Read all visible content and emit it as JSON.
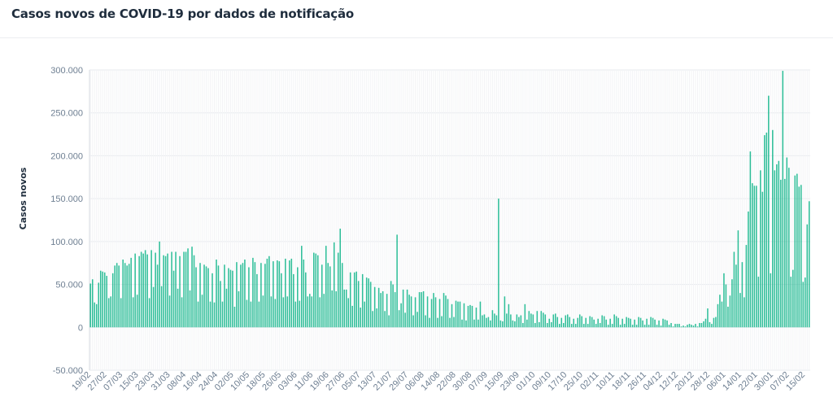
{
  "title": "Casos novos de COVID-19 por dados de notificação",
  "chart_data": {
    "type": "bar",
    "title": "Casos novos de COVID-19 por dados de notificação",
    "xlabel": "",
    "ylabel": "Casos novos",
    "ylim": [
      -50000,
      300000
    ],
    "yticks": [
      -50000,
      0,
      50000,
      100000,
      150000,
      200000,
      250000,
      300000
    ],
    "ytick_labels": [
      "-50.000",
      "0",
      "50.000",
      "100.000",
      "150.000",
      "200.000",
      "250.000",
      "300.000"
    ],
    "xtick_labels": [
      "19/02",
      "27/02",
      "07/03",
      "15/03",
      "23/03",
      "31/03",
      "08/04",
      "16/04",
      "24/04",
      "02/05",
      "10/05",
      "18/05",
      "26/05",
      "03/06",
      "11/06",
      "19/06",
      "27/06",
      "05/07",
      "13/07",
      "21/07",
      "29/07",
      "06/08",
      "14/08",
      "22/08",
      "30/08",
      "07/09",
      "15/09",
      "23/09",
      "01/10",
      "09/10",
      "17/10",
      "25/10",
      "02/11",
      "10/11",
      "18/11",
      "26/11",
      "04/12",
      "12/12",
      "20/12",
      "28/12",
      "06/01",
      "14/01",
      "22/01",
      "30/01",
      "07/02",
      "15/02"
    ],
    "bar_color": "#2ebd98",
    "grid": true,
    "categories_start": "19/02",
    "categories_end": "16/02",
    "values": [
      51000,
      56000,
      29000,
      27000,
      52000,
      66000,
      65000,
      64000,
      60000,
      34000,
      36000,
      63000,
      72000,
      75000,
      72000,
      34000,
      79000,
      75000,
      72000,
      74000,
      81000,
      35000,
      86000,
      38000,
      83000,
      88000,
      86000,
      90000,
      85000,
      34000,
      90000,
      47000,
      87000,
      73000,
      100000,
      48000,
      84000,
      83000,
      86000,
      37000,
      88000,
      66000,
      88000,
      45000,
      83000,
      35000,
      88000,
      88000,
      92000,
      43000,
      94000,
      84000,
      70000,
      30000,
      75000,
      38000,
      73000,
      71000,
      69000,
      30000,
      63000,
      29000,
      79000,
      72000,
      54000,
      30000,
      73000,
      45000,
      69000,
      67000,
      66000,
      24000,
      76000,
      42000,
      73000,
      75000,
      79000,
      32000,
      70000,
      30000,
      81000,
      76000,
      62000,
      30000,
      75000,
      37000,
      74000,
      80000,
      83000,
      36000,
      77000,
      33000,
      78000,
      77000,
      63000,
      35000,
      80000,
      36000,
      78000,
      80000,
      62000,
      30000,
      70000,
      31000,
      95000,
      79000,
      64000,
      36000,
      39000,
      36000,
      87000,
      86000,
      84000,
      35000,
      73000,
      39000,
      95000,
      75000,
      71000,
      43000,
      99000,
      42000,
      87000,
      115000,
      75000,
      44000,
      44000,
      34000,
      64000,
      25000,
      64000,
      65000,
      54000,
      23000,
      62000,
      30000,
      58000,
      57000,
      53000,
      19000,
      47000,
      22000,
      46000,
      40000,
      42000,
      19000,
      39000,
      14000,
      54000,
      50000,
      41000,
      108000,
      20000,
      28000,
      44000,
      17000,
      44000,
      38000,
      36000,
      14000,
      35000,
      18000,
      41000,
      41000,
      42000,
      14000,
      36000,
      11000,
      33000,
      40000,
      35000,
      11000,
      33000,
      13000,
      40000,
      37000,
      33000,
      11000,
      27000,
      12000,
      31000,
      30000,
      30000,
      9000,
      28000,
      8000,
      25000,
      26000,
      25000,
      9000,
      23000,
      9000,
      30000,
      14000,
      15000,
      11000,
      12000,
      8000,
      20000,
      16000,
      14000,
      150000,
      8000,
      7000,
      36000,
      16000,
      27000,
      15000,
      8000,
      7000,
      15000,
      12000,
      14000,
      5000,
      27000,
      9000,
      19000,
      16000,
      15000,
      5000,
      19000,
      6000,
      19000,
      17000,
      15000,
      5000,
      10000,
      6000,
      15000,
      16000,
      12000,
      4000,
      11000,
      5000,
      14000,
      15000,
      12000,
      4000,
      10000,
      4000,
      11000,
      15000,
      13000,
      4000,
      11000,
      4000,
      13000,
      12000,
      9000,
      4000,
      10000,
      5000,
      14000,
      13000,
      9000,
      3000,
      10000,
      4000,
      15000,
      13000,
      11000,
      3000,
      10000,
      4000,
      12000,
      11000,
      10000,
      3000,
      9000,
      3000,
      12000,
      11000,
      8000,
      3000,
      10000,
      3000,
      12000,
      11000,
      9000,
      3000,
      8000,
      2000,
      10000,
      9000,
      8000,
      3000,
      5000,
      1000,
      4000,
      4000,
      4000,
      1000,
      2000,
      1000,
      3000,
      4000,
      3000,
      2000,
      4000,
      1000,
      5000,
      5000,
      7000,
      10000,
      22000,
      6000,
      4000,
      11000,
      12000,
      27000,
      38000,
      30000,
      63000,
      50000,
      24000,
      37000,
      56000,
      88000,
      73000,
      113000,
      40000,
      76000,
      35000,
      96000,
      135000,
      205000,
      168000,
      165000,
      165000,
      59000,
      183000,
      158000,
      224000,
      227000,
      270000,
      63000,
      230000,
      183000,
      190000,
      194000,
      172000,
      299000,
      173000,
      198000,
      186000,
      59000,
      67000,
      177000,
      179000,
      164000,
      166000,
      53000,
      58000,
      120000,
      147000
    ]
  }
}
